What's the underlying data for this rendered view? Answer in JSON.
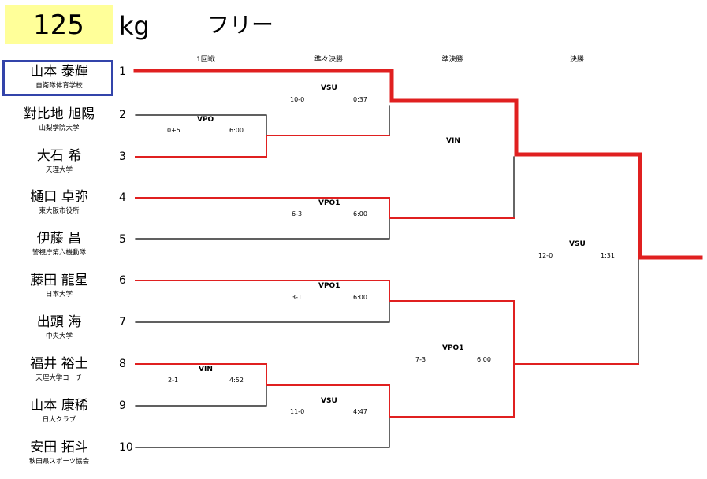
{
  "header": {
    "weight": "125",
    "unit": "kg",
    "style": "フリー"
  },
  "rounds": [
    "1回戦",
    "準々決勝",
    "準決勝",
    "決勝"
  ],
  "athletes": [
    {
      "seed": "1",
      "name": "山本 泰輝",
      "club": "自衛隊体育学校"
    },
    {
      "seed": "2",
      "name": "對比地 旭陽",
      "club": "山梨学院大学"
    },
    {
      "seed": "3",
      "name": "大石 希",
      "club": "天理大学"
    },
    {
      "seed": "4",
      "name": "樋口 卓弥",
      "club": "東大阪市役所"
    },
    {
      "seed": "5",
      "name": "伊藤 昌",
      "club": "警視庁第六機動隊"
    },
    {
      "seed": "6",
      "name": "藤田 龍星",
      "club": "日本大学"
    },
    {
      "seed": "7",
      "name": "出頭 海",
      "club": "中央大学"
    },
    {
      "seed": "8",
      "name": "福井 裕士",
      "club": "天理大学コーチ"
    },
    {
      "seed": "9",
      "name": "山本 康稀",
      "club": "日大クラブ"
    },
    {
      "seed": "10",
      "name": "安田 拓斗",
      "club": "秋田県スポーツ協会"
    }
  ],
  "matches": {
    "r1_2v3": {
      "result": "VPO",
      "score": "0+5",
      "time": "6:00"
    },
    "r1_8v9": {
      "result": "VIN",
      "score": "2-1",
      "time": "4:52"
    },
    "qf_1": {
      "result": "VSU",
      "score": "10-0",
      "time": "0:37"
    },
    "qf_2": {
      "result": "VPO1",
      "score": "6-3",
      "time": "6:00"
    },
    "qf_3": {
      "result": "VPO1",
      "score": "3-1",
      "time": "6:00"
    },
    "qf_4": {
      "result": "VSU",
      "score": "11-0",
      "time": "4:47"
    },
    "sf_1": {
      "result": "VIN",
      "score": "",
      "time": ""
    },
    "sf_2": {
      "result": "VPO1",
      "score": "7-3",
      "time": "6:00"
    },
    "final": {
      "result": "VSU",
      "score": "12-0",
      "time": "1:31"
    }
  },
  "colors": {
    "winner_line": "#e02020",
    "loser_line": "#000000",
    "highlight": "#ffff99",
    "frame": "#3344aa"
  }
}
